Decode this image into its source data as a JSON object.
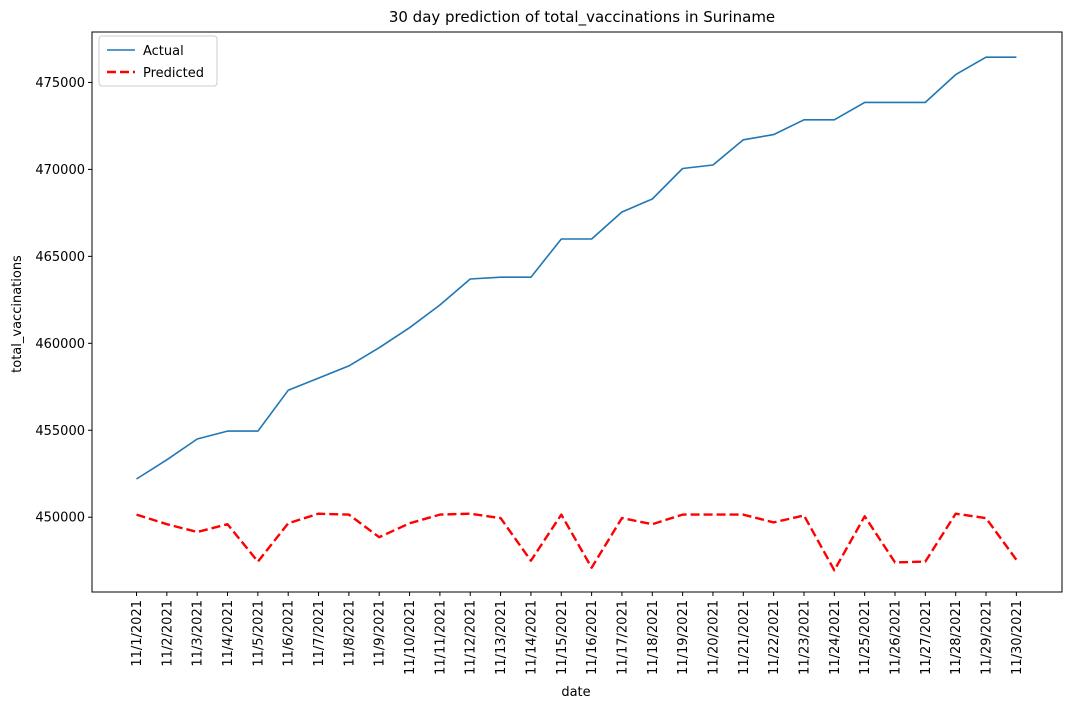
{
  "chart_data": {
    "type": "line",
    "title": "30 day prediction of total_vaccinations in Suriname",
    "xlabel": "date",
    "ylabel": "total_vaccinations",
    "x": [
      "11/1/2021",
      "11/2/2021",
      "11/3/2021",
      "11/4/2021",
      "11/5/2021",
      "11/6/2021",
      "11/7/2021",
      "11/8/2021",
      "11/9/2021",
      "11/10/2021",
      "11/11/2021",
      "11/12/2021",
      "11/13/2021",
      "11/14/2021",
      "11/15/2021",
      "11/16/2021",
      "11/17/2021",
      "11/18/2021",
      "11/19/2021",
      "11/20/2021",
      "11/21/2021",
      "11/22/2021",
      "11/23/2021",
      "11/24/2021",
      "11/25/2021",
      "11/26/2021",
      "11/27/2021",
      "11/28/2021",
      "11/29/2021",
      "11/30/2021"
    ],
    "yticks": [
      450000,
      455000,
      460000,
      465000,
      470000,
      475000
    ],
    "ylim": [
      445700,
      477900
    ],
    "grid": false,
    "legend_position": "top-left",
    "series": [
      {
        "name": "Actual",
        "color": "#1f77b4",
        "style": "solid",
        "values": [
          452200,
          453300,
          454500,
          454950,
          454950,
          457300,
          458000,
          458700,
          459750,
          460900,
          462200,
          463700,
          463800,
          463800,
          466000,
          466000,
          467550,
          468300,
          470050,
          470250,
          471700,
          472000,
          472850,
          472850,
          473850,
          473850,
          473850,
          475450,
          476450,
          476450
        ]
      },
      {
        "name": "Predicted",
        "color": "#ff0000",
        "style": "dashed",
        "values": [
          450150,
          449600,
          449150,
          449600,
          447450,
          449650,
          450200,
          450150,
          448850,
          449650,
          450150,
          450200,
          449950,
          447500,
          450150,
          447100,
          449950,
          449600,
          450150,
          450150,
          450150,
          449700,
          450100,
          446950,
          450050,
          447400,
          447450,
          450200,
          449950,
          447550
        ]
      }
    ]
  }
}
